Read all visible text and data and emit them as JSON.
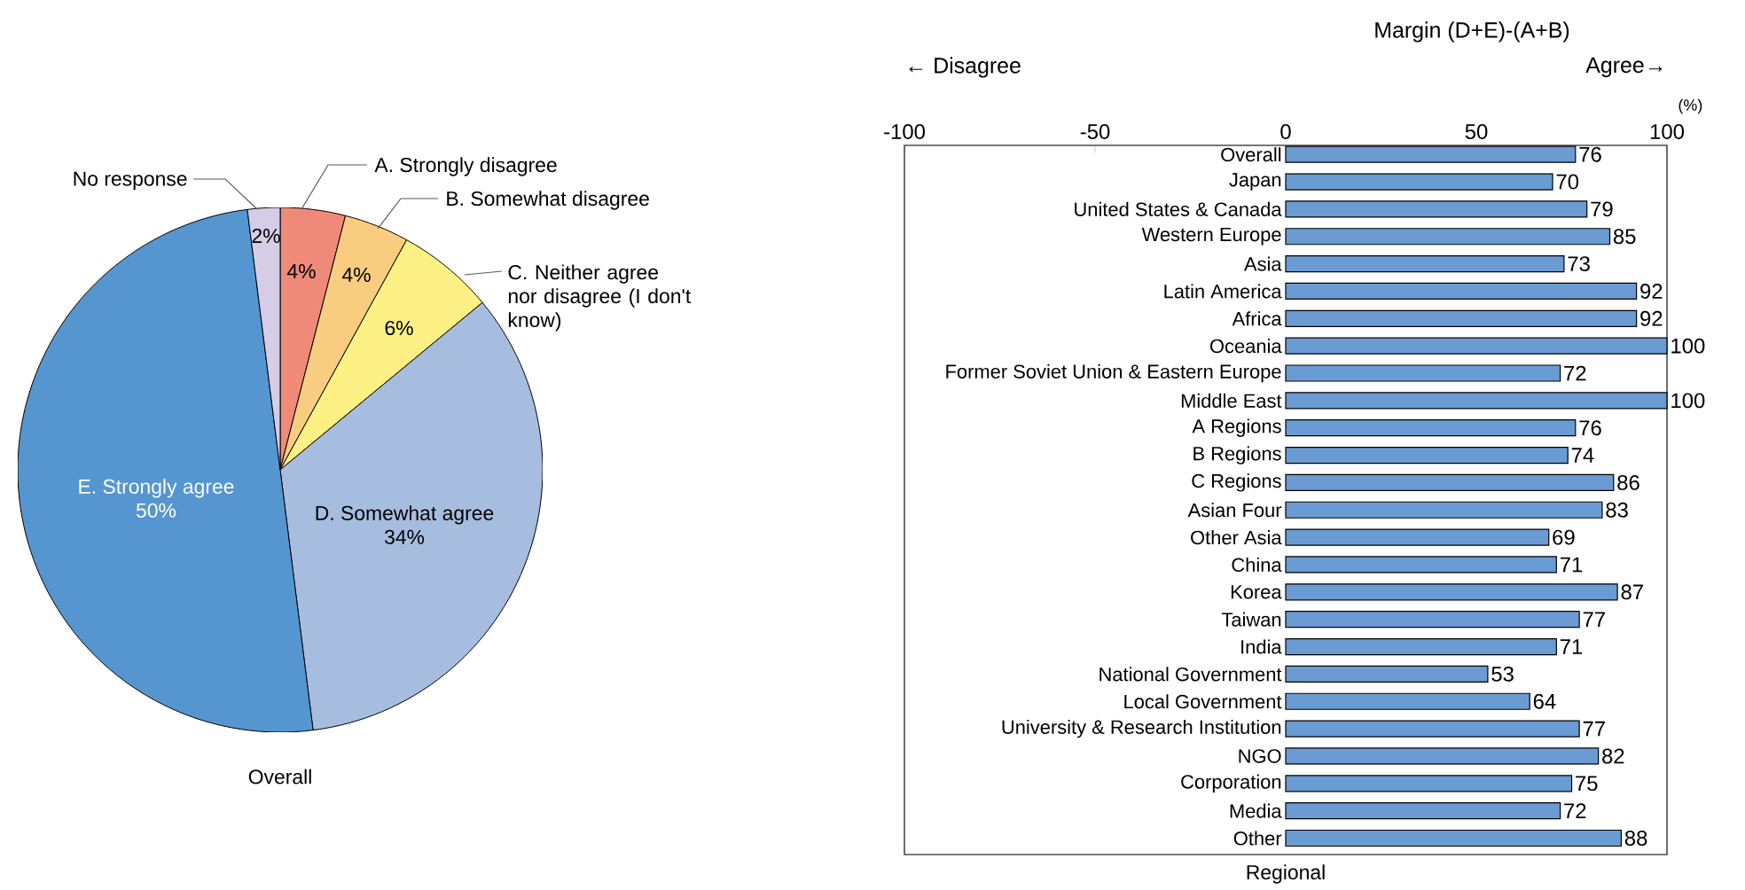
{
  "chart_data": [
    {
      "type": "pie",
      "xlabel": "Overall",
      "categories": [
        "A. Strongly disagree",
        "B. Somewhat disagree",
        "C. Neither agree nor disagree (I don't know)",
        "D. Somewhat agree",
        "E. Strongly agree",
        "No response"
      ],
      "values": [
        4,
        4,
        6,
        34,
        50,
        2
      ],
      "value_labels": [
        "4%",
        "4%",
        "6%",
        "34%",
        "50%",
        "2%"
      ],
      "colors": [
        "#ef8a78",
        "#f9cd80",
        "#fdf186",
        "#a7bde0",
        "#5596d1",
        "#d5cce6"
      ]
    },
    {
      "type": "bar",
      "orientation": "horizontal",
      "title": "Margin (D+E)-(A+B)",
      "xlabel": "Regional",
      "annotations": [
        "← Disagree",
        "Agree→",
        "(%)"
      ],
      "categories": [
        "Overall",
        "Japan",
        "United States & Canada",
        "Western Europe",
        "Asia",
        "Latin America",
        "Africa",
        "Oceania",
        "Former Soviet Union & Eastern Europe",
        "Middle East",
        "A Regions",
        "B Regions",
        "C Regions",
        "Asian Four",
        "Other Asia",
        "China",
        "Korea",
        "Taiwan",
        "India",
        "National Government",
        "Local Government",
        "University & Research Institution",
        "NGO",
        "Corporation",
        "Media",
        "Other"
      ],
      "values": [
        76,
        70,
        79,
        85,
        73,
        92,
        92,
        100,
        72,
        100,
        76,
        74,
        86,
        83,
        69,
        71,
        87,
        77,
        71,
        53,
        64,
        77,
        82,
        75,
        72,
        88
      ],
      "color": "#6a9bd3",
      "data_labels": true,
      "xlim": [
        -100,
        100
      ],
      "xticks": [
        -100,
        -50,
        0,
        50,
        100
      ]
    }
  ]
}
